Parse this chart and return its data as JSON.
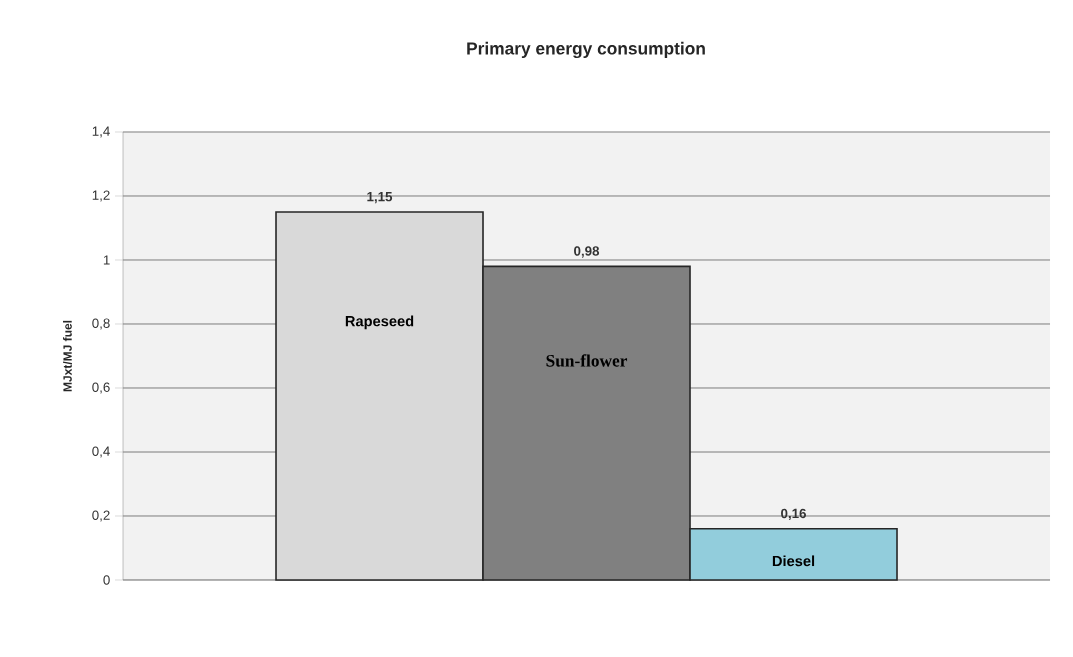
{
  "chart_data": {
    "type": "bar",
    "title": "Primary energy consumption",
    "ylabel": "MJxt/MJ fuel",
    "categories": [
      "Rapeseed",
      "Sun-flower",
      "Diesel"
    ],
    "values": [
      1.15,
      0.98,
      0.16
    ],
    "value_labels": [
      "1,15",
      "0,98",
      "0,16"
    ],
    "colors": [
      "#d9d9d9",
      "#808080",
      "#92cddc"
    ],
    "ylim": [
      0,
      1.4
    ],
    "yticks": [
      0,
      {
        "value": 0.2,
        "label": "0,2"
      },
      {
        "value": 0.4,
        "label": "0,4"
      },
      {
        "value": 0.6,
        "label": "0,6"
      },
      {
        "value": 0.8,
        "label": "0,8"
      },
      1,
      {
        "value": 1.2,
        "label": "1,2"
      },
      {
        "value": 1.4,
        "label": "1,4"
      }
    ],
    "grid": "y"
  }
}
